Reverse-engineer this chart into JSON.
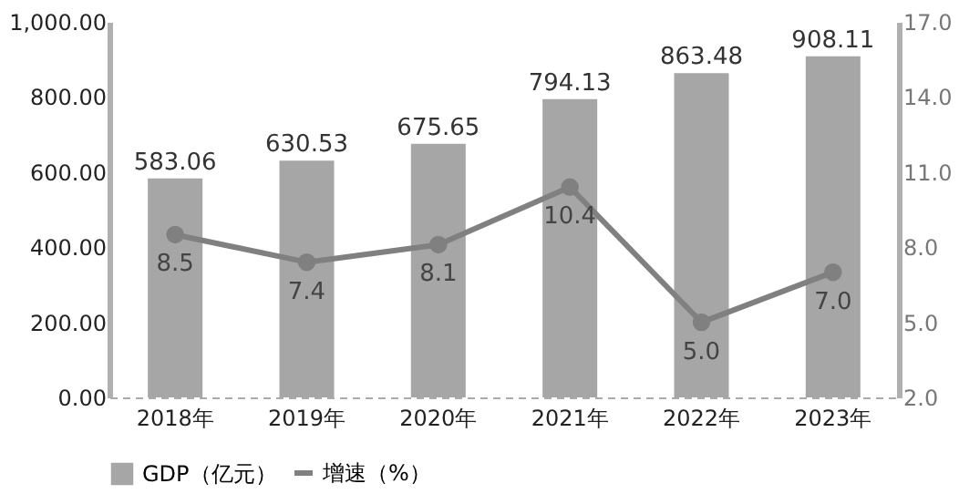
{
  "chart_data": {
    "type": "bar",
    "categories": [
      "2018年",
      "2019年",
      "2020年",
      "2021年",
      "2022年",
      "2023年"
    ],
    "series": [
      {
        "name": "GDP（亿元）",
        "color": "#a6a6a6",
        "values": [
          583.06,
          630.53,
          675.65,
          794.13,
          863.48,
          908.11
        ],
        "value_labels": [
          "583.06",
          "630.53",
          "675.65",
          "794.13",
          "863.48",
          "908.11"
        ]
      },
      {
        "name": "增速（%）",
        "type": "line",
        "axis": "y2",
        "color": "#808080",
        "values": [
          8.5,
          7.4,
          8.1,
          10.4,
          5.0,
          7.0
        ],
        "value_labels": [
          "8.5",
          "7.4",
          "8.1",
          "10.4",
          "5.0",
          "7.0"
        ]
      }
    ],
    "ylim": [
      0,
      1000
    ],
    "yticks": [
      {
        "value": 0,
        "label": "0.00"
      },
      {
        "value": 200,
        "label": "200.00"
      },
      {
        "value": 400,
        "label": "400.00"
      },
      {
        "value": 600,
        "label": "600.00"
      },
      {
        "value": 800,
        "label": "800.00"
      },
      {
        "value": 1000,
        "label": "1,000.00"
      }
    ],
    "y2lim": [
      2,
      17
    ],
    "y2ticks": [
      {
        "value": 2,
        "label": "2.0"
      },
      {
        "value": 5,
        "label": "5.0"
      },
      {
        "value": 8,
        "label": "8.0"
      },
      {
        "value": 11,
        "label": "11.0"
      },
      {
        "value": 14,
        "label": "14.0"
      },
      {
        "value": 17,
        "label": "17.0"
      }
    ],
    "grid": false,
    "legend": "bottom",
    "marker": "circle",
    "line_style": "solid"
  }
}
